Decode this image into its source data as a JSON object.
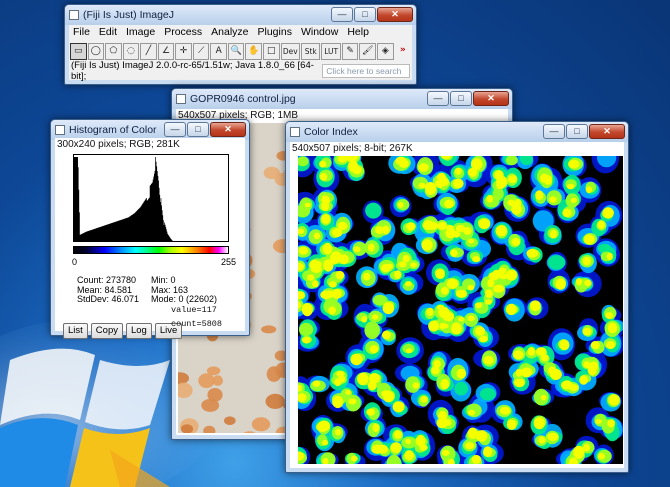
{
  "desktop": {
    "background": "#0d4796"
  },
  "imagej": {
    "title": "(Fiji Is Just) ImageJ",
    "menus": [
      "File",
      "Edit",
      "Image",
      "Process",
      "Analyze",
      "Plugins",
      "Window",
      "Help"
    ],
    "tools": [
      {
        "name": "rectangle-tool-icon",
        "glyph": "▭"
      },
      {
        "name": "oval-tool-icon",
        "glyph": "◯"
      },
      {
        "name": "polygon-tool-icon",
        "glyph": "⬠"
      },
      {
        "name": "freehand-tool-icon",
        "glyph": "◌"
      },
      {
        "name": "line-tool-icon",
        "glyph": "╱"
      },
      {
        "name": "angle-tool-icon",
        "glyph": "∠"
      },
      {
        "name": "point-tool-icon",
        "glyph": "✛"
      },
      {
        "name": "wand-tool-icon",
        "glyph": "⟋"
      },
      {
        "name": "text-tool-icon",
        "glyph": "A"
      },
      {
        "name": "magnifier-tool-icon",
        "glyph": "🔍"
      },
      {
        "name": "hand-tool-icon",
        "glyph": "✋"
      },
      {
        "name": "color-picker-tool-icon",
        "glyph": "□"
      }
    ],
    "tools2": [
      "Dev",
      "Stk",
      "LUT"
    ],
    "tools3": [
      {
        "name": "pencil-tool-icon",
        "glyph": "✎"
      },
      {
        "name": "brush-tool-icon",
        "glyph": "🖌"
      },
      {
        "name": "flood-fill-tool-icon",
        "glyph": "◈"
      }
    ],
    "more_tools": "»",
    "status": "(Fiji Is Just) ImageJ 2.0.0-rc-65/1.51w; Java 1.8.0_66 [64-bit];",
    "search_placeholder": "Click here to search"
  },
  "gopr": {
    "title": "GOPR0946 control.jpg",
    "info": "540x507 pixels; RGB; 1MB"
  },
  "histogram": {
    "title": "Histogram of Color",
    "info": "300x240 pixels; RGB; 281K",
    "axis_min": "0",
    "axis_max": "255",
    "stats_left": [
      "Count: 273780",
      "Mean: 84.581",
      "StdDev: 46.071"
    ],
    "stats_right": [
      "Min: 0",
      "Max: 163",
      "Mode: 0 (22602)"
    ],
    "buttons": [
      "List",
      "Copy",
      "Log",
      "Live"
    ],
    "value": "value=117",
    "count": "count=5808",
    "chart_data": {
      "type": "bar",
      "xlim": [
        0,
        255
      ],
      "x": [
        0,
        10,
        20,
        30,
        40,
        50,
        60,
        70,
        80,
        90,
        100,
        110,
        120,
        130,
        135,
        140,
        145,
        150,
        155,
        160,
        163
      ],
      "values": [
        22602,
        600,
        900,
        1100,
        1300,
        1500,
        1700,
        1900,
        2100,
        2300,
        2700,
        3300,
        4200,
        6200,
        8200,
        6500,
        3600,
        1800,
        700,
        250,
        40
      ]
    }
  },
  "colorindex": {
    "title": "Color Index",
    "info": "540x507 pixels; 8-bit; 267K"
  },
  "window_controls": {
    "minimize": "—",
    "maximize": "□",
    "close": "✕"
  }
}
